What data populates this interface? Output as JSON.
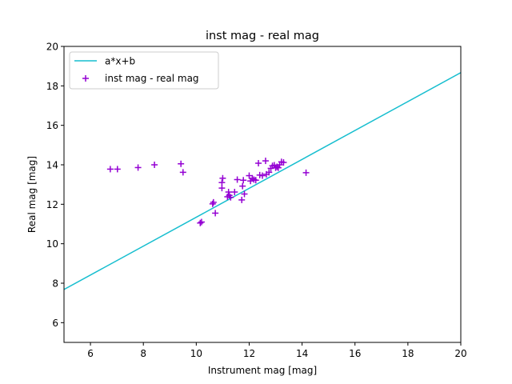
{
  "chart_data": {
    "type": "scatter",
    "title": "inst mag - real mag",
    "xlabel": "Instrument mag [mag]",
    "ylabel": "Real mag [mag]",
    "xlim": [
      5,
      20
    ],
    "ylim": [
      5,
      20
    ],
    "xticks": [
      6,
      8,
      10,
      12,
      14,
      16,
      18,
      20
    ],
    "yticks": [
      6,
      8,
      10,
      12,
      14,
      16,
      18,
      20
    ],
    "grid": false,
    "legend_position": "top-left",
    "series": [
      {
        "name": "a*x+b",
        "kind": "line",
        "color": "#17becf",
        "x": [
          5,
          20
        ],
        "y": [
          7.68,
          18.67
        ]
      },
      {
        "name": "inst mag - real mag",
        "kind": "scatter",
        "marker": "plus",
        "color": "#9400d3",
        "points": [
          [
            6.75,
            13.78
          ],
          [
            7.02,
            13.78
          ],
          [
            7.8,
            13.86
          ],
          [
            8.42,
            14.0
          ],
          [
            9.42,
            14.05
          ],
          [
            9.5,
            13.62
          ],
          [
            10.15,
            11.05
          ],
          [
            10.2,
            11.1
          ],
          [
            10.62,
            12.02
          ],
          [
            10.65,
            12.1
          ],
          [
            10.72,
            11.55
          ],
          [
            10.97,
            12.82
          ],
          [
            10.97,
            13.1
          ],
          [
            11.0,
            13.32
          ],
          [
            11.18,
            12.38
          ],
          [
            11.22,
            12.62
          ],
          [
            11.25,
            12.45
          ],
          [
            11.3,
            12.35
          ],
          [
            11.45,
            12.62
          ],
          [
            11.55,
            13.25
          ],
          [
            11.72,
            12.22
          ],
          [
            11.75,
            12.92
          ],
          [
            11.78,
            13.22
          ],
          [
            11.82,
            12.52
          ],
          [
            12.0,
            13.45
          ],
          [
            12.05,
            13.18
          ],
          [
            12.12,
            13.32
          ],
          [
            12.18,
            13.25
          ],
          [
            12.25,
            13.22
          ],
          [
            12.35,
            14.08
          ],
          [
            12.4,
            13.48
          ],
          [
            12.5,
            13.45
          ],
          [
            12.62,
            14.2
          ],
          [
            12.65,
            13.52
          ],
          [
            12.75,
            13.62
          ],
          [
            12.82,
            13.82
          ],
          [
            12.88,
            13.95
          ],
          [
            12.95,
            13.98
          ],
          [
            13.0,
            13.85
          ],
          [
            13.05,
            13.9
          ],
          [
            13.1,
            13.85
          ],
          [
            13.15,
            14.0
          ],
          [
            13.22,
            14.15
          ],
          [
            13.3,
            14.12
          ],
          [
            14.15,
            13.6
          ]
        ]
      }
    ]
  }
}
